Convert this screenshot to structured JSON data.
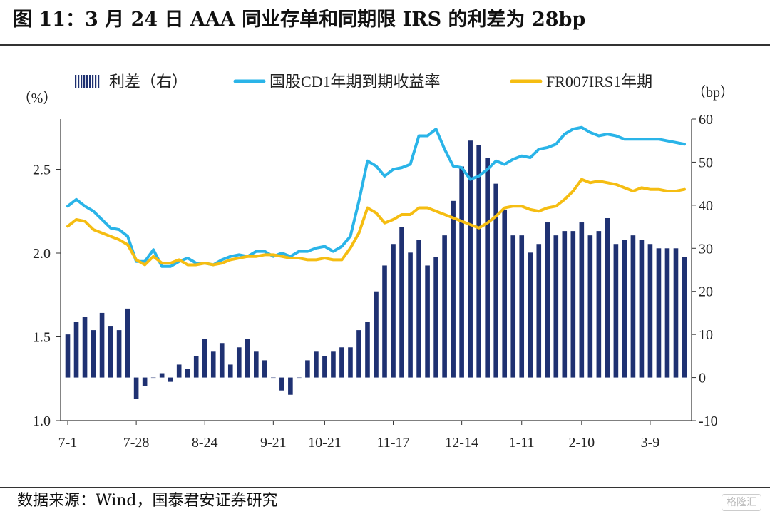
{
  "title": "图 11：3 月 24 日 AAA 同业存单和同期限 IRS 的利差为 28bp",
  "source": "数据来源：Wind，国泰君安证券研究",
  "watermark": "格隆汇",
  "chart_data": {
    "type": "bar+line",
    "x": [
      "7-1",
      "7-5",
      "7-8",
      "7-12",
      "7-15",
      "7-19",
      "7-22",
      "7-26",
      "7-28",
      "8-2",
      "8-5",
      "8-9",
      "8-12",
      "8-16",
      "8-19",
      "8-23",
      "8-24",
      "8-29",
      "9-1",
      "9-5",
      "9-8",
      "9-12",
      "9-15",
      "9-19",
      "9-21",
      "9-26",
      "9-29",
      "10-10",
      "10-13",
      "10-17",
      "10-21",
      "10-25",
      "10-28",
      "11-1",
      "11-4",
      "11-8",
      "11-11",
      "11-15",
      "11-17",
      "11-21",
      "11-24",
      "11-28",
      "12-1",
      "12-5",
      "12-8",
      "12-12",
      "12-14",
      "12-19",
      "12-22",
      "12-26",
      "12-29",
      "1-3",
      "1-6",
      "1-11",
      "1-14",
      "1-18",
      "1-21",
      "1-25",
      "1-28",
      "2-1",
      "2-10",
      "2-14",
      "2-17",
      "2-21",
      "2-24",
      "2-28",
      "3-2",
      "3-6",
      "3-9",
      "3-13",
      "3-16",
      "3-20",
      "3-24"
    ],
    "series": [
      {
        "name": "利差（右）",
        "axis": "right",
        "kind": "bar",
        "color": "#1f3172",
        "values": [
          10,
          13,
          14,
          11,
          15,
          12,
          11,
          16,
          -5,
          -2,
          0,
          1,
          -1,
          3,
          2,
          5,
          9,
          6,
          8,
          3,
          7,
          9,
          6,
          4,
          0,
          -3,
          -4,
          0,
          4,
          6,
          5,
          6,
          7,
          7,
          11,
          13,
          20,
          26,
          31,
          35,
          29,
          32,
          26,
          28,
          33,
          41,
          49,
          55,
          54,
          51,
          45,
          39,
          33,
          33,
          29,
          31,
          36,
          33,
          34,
          34,
          36,
          33,
          34,
          37,
          31,
          32,
          33,
          32,
          31,
          30,
          30,
          30,
          28
        ]
      },
      {
        "name": "国股CD1年期到期收益率",
        "axis": "left",
        "kind": "line",
        "color": "#2ab4e8",
        "values": [
          2.28,
          2.32,
          2.28,
          2.25,
          2.2,
          2.15,
          2.14,
          2.1,
          1.95,
          1.95,
          2.02,
          1.92,
          1.92,
          1.95,
          1.97,
          1.94,
          1.94,
          1.93,
          1.96,
          1.98,
          1.99,
          1.98,
          2.01,
          2.01,
          1.98,
          2.0,
          1.98,
          2.01,
          2.01,
          2.03,
          2.04,
          2.01,
          2.04,
          2.1,
          2.31,
          2.55,
          2.52,
          2.46,
          2.5,
          2.51,
          2.53,
          2.7,
          2.7,
          2.74,
          2.62,
          2.52,
          2.51,
          2.44,
          2.46,
          2.5,
          2.55,
          2.53,
          2.56,
          2.58,
          2.57,
          2.62,
          2.63,
          2.65,
          2.71,
          2.74,
          2.75,
          2.72,
          2.7,
          2.71,
          2.7,
          2.68,
          2.68,
          2.68,
          2.68,
          2.68,
          2.67,
          2.66,
          2.65
        ]
      },
      {
        "name": "FR007IRS1年期",
        "axis": "left",
        "kind": "line",
        "color": "#f5bd12",
        "values": [
          2.16,
          2.2,
          2.19,
          2.14,
          2.12,
          2.1,
          2.08,
          2.05,
          1.96,
          1.93,
          1.98,
          1.94,
          1.94,
          1.96,
          1.93,
          1.93,
          1.94,
          1.93,
          1.94,
          1.96,
          1.97,
          1.98,
          1.98,
          1.99,
          1.99,
          1.98,
          1.97,
          1.97,
          1.96,
          1.96,
          1.97,
          1.96,
          1.96,
          2.03,
          2.12,
          2.27,
          2.24,
          2.18,
          2.2,
          2.23,
          2.23,
          2.27,
          2.27,
          2.25,
          2.23,
          2.21,
          2.19,
          2.17,
          2.15,
          2.18,
          2.22,
          2.27,
          2.28,
          2.28,
          2.26,
          2.25,
          2.27,
          2.28,
          2.32,
          2.37,
          2.44,
          2.42,
          2.43,
          2.42,
          2.41,
          2.39,
          2.37,
          2.39,
          2.38,
          2.38,
          2.37,
          2.37,
          2.38
        ]
      }
    ],
    "x_tick_labels": [
      "7-1",
      "7-28",
      "8-24",
      "9-21",
      "10-21",
      "11-17",
      "12-14",
      "1-11",
      "2-10",
      "3-9"
    ],
    "left_axis": {
      "label": "（%）",
      "ticks": [
        "1.0",
        "1.5",
        "2.0",
        "2.5"
      ],
      "ylim": [
        1.0,
        2.8
      ]
    },
    "right_axis": {
      "label": "（bp）",
      "ticks": [
        "-10",
        "0",
        "10",
        "20",
        "30",
        "40",
        "50",
        "60"
      ],
      "ylim": [
        -10,
        60
      ]
    },
    "legend": {
      "position": "top",
      "items": [
        {
          "label": "利差（右）",
          "style": "bar",
          "color": "#1f3172"
        },
        {
          "label": "国股CD1年期到期收益率",
          "style": "line",
          "color": "#2ab4e8"
        },
        {
          "label": "FR007IRS1年期",
          "style": "line",
          "color": "#f5bd12"
        }
      ]
    },
    "grid": false
  }
}
